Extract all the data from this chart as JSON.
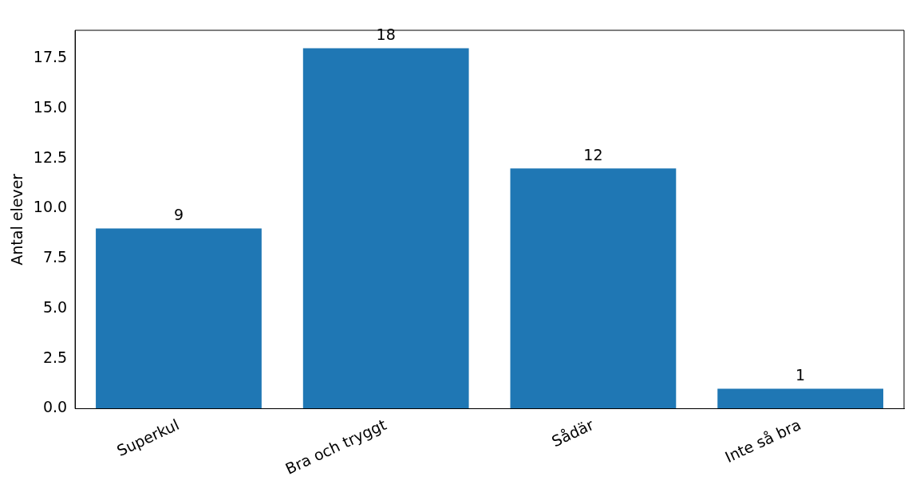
{
  "chart_data": {
    "type": "bar",
    "ylabel": "Antal elever",
    "categories": [
      "Superkul",
      "Bra och tryggt",
      "Sådär",
      "Inte så bra"
    ],
    "values": [
      9,
      18,
      12,
      1
    ],
    "color": "#1f77b4",
    "ylim": [
      0,
      18.9
    ],
    "yticks": [
      {
        "value": 0,
        "label": "0.0"
      },
      {
        "value": 2.5,
        "label": "2.5"
      },
      {
        "value": 5,
        "label": "5.0"
      },
      {
        "value": 7.5,
        "label": "7.5"
      },
      {
        "value": 10,
        "label": "10.0"
      },
      {
        "value": 12.5,
        "label": "12.5"
      },
      {
        "value": 15,
        "label": "15.0"
      },
      {
        "value": 17.5,
        "label": "17.5"
      }
    ],
    "grid": false,
    "legend": false,
    "data_labels": true
  }
}
